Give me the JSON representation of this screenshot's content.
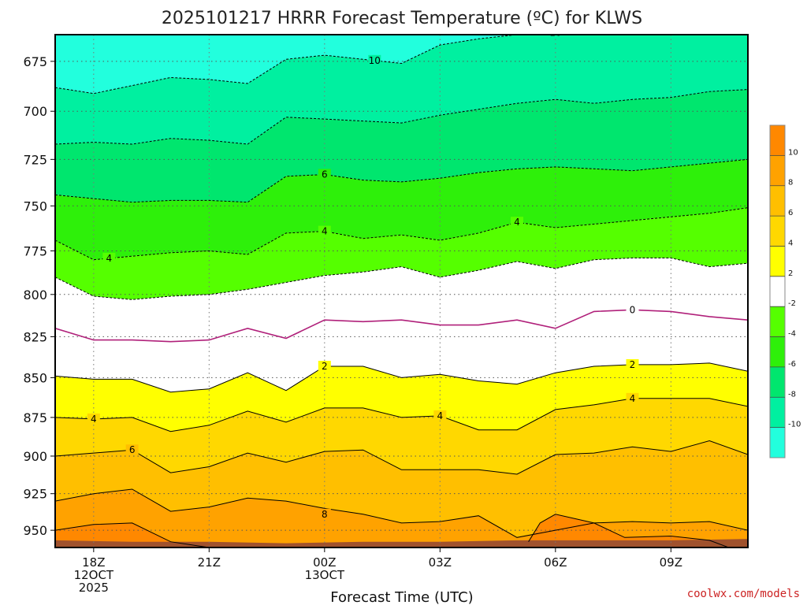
{
  "chart_data": {
    "type": "heatmap",
    "title": "2025101217 HRRR Forecast Temperature (ºC) for KLWS",
    "xlabel": "Forecast Time (UTC)",
    "ylabel": "",
    "credit": "coolwx.com/models",
    "credit_color": "#cc2222",
    "y_axis": {
      "scale": "log",
      "inverted": true,
      "range": [
        962,
        662
      ],
      "ticks": [
        675,
        700,
        725,
        750,
        775,
        800,
        825,
        850,
        875,
        900,
        925,
        950
      ]
    },
    "x_axis": {
      "range_hours": [
        -1,
        17
      ],
      "ticks": [
        {
          "hour": 0,
          "lines": [
            "18Z",
            "12OCT",
            "2025"
          ]
        },
        {
          "hour": 3,
          "lines": [
            "21Z"
          ]
        },
        {
          "hour": 6,
          "lines": [
            "00Z",
            "13OCT"
          ]
        },
        {
          "hour": 9,
          "lines": [
            "03Z"
          ]
        },
        {
          "hour": 12,
          "lines": [
            "06Z"
          ]
        },
        {
          "hour": 15,
          "lines": [
            "09Z"
          ]
        }
      ]
    },
    "grid": true,
    "colorbar": {
      "labels": [
        "10",
        "8",
        "6",
        "4",
        "2",
        "-2",
        "-4",
        "-6",
        "-8",
        "-10"
      ],
      "bands": [
        {
          "lo": 10,
          "hi": 12,
          "color": "#ff8800"
        },
        {
          "lo": 8,
          "hi": 10,
          "color": "#ffa200"
        },
        {
          "lo": 6,
          "hi": 8,
          "color": "#ffbf00"
        },
        {
          "lo": 4,
          "hi": 6,
          "color": "#ffd800"
        },
        {
          "lo": 2,
          "hi": 4,
          "color": "#ffff00"
        },
        {
          "lo": -2,
          "hi": 2,
          "color": "#ffffff"
        },
        {
          "lo": -4,
          "hi": -2,
          "color": "#55ff00"
        },
        {
          "lo": -6,
          "hi": -4,
          "color": "#2ef00a"
        },
        {
          "lo": -8,
          "hi": -6,
          "color": "#00e66e"
        },
        {
          "lo": -10,
          "hi": -8,
          "color": "#00f0a0"
        },
        {
          "lo": -12,
          "hi": -10,
          "color": "#22ffdd"
        }
      ]
    },
    "terrain_color": "#a0522d",
    "hours": [
      -1,
      0,
      1,
      2,
      3,
      4,
      5,
      6,
      7,
      8,
      9,
      10,
      11,
      12,
      13,
      14,
      15,
      16,
      17
    ],
    "contours": [
      {
        "level": -10,
        "label": "10",
        "pressure": [
          688,
          691,
          687,
          683,
          684,
          686,
          674,
          672,
          674,
          676,
          667,
          664,
          662,
          661,
          662,
          661,
          659,
          658,
          657
        ],
        "labels_at": [
          7.3,
          12
        ]
      },
      {
        "level": -8,
        "label": "",
        "pressure": [
          717,
          716,
          717,
          714,
          715,
          717,
          703,
          704,
          705,
          706,
          702,
          699,
          696,
          694,
          696,
          694,
          693,
          690,
          689
        ],
        "labels_at": []
      },
      {
        "level": -6,
        "label": "6",
        "pressure": [
          744,
          746,
          748,
          747,
          747,
          748,
          734,
          733,
          736,
          737,
          735,
          732,
          730,
          729,
          730,
          731,
          729,
          727,
          725
        ],
        "labels_at": [
          6
        ]
      },
      {
        "level": -4,
        "label": "4",
        "pressure": [
          769,
          780,
          778,
          776,
          775,
          777,
          765,
          764,
          768,
          766,
          769,
          765,
          759,
          762,
          760,
          758,
          756,
          754,
          751
        ],
        "labels_at": [
          0.4,
          6,
          11
        ]
      },
      {
        "level": -2,
        "label": "",
        "pressure": [
          790,
          801,
          803,
          801,
          800,
          797,
          793,
          789,
          787,
          784,
          790,
          786,
          781,
          785,
          780,
          779,
          779,
          784,
          782
        ],
        "labels_at": []
      },
      {
        "level": 0,
        "label": "0",
        "pressure": [
          820,
          827,
          827,
          828,
          827,
          820,
          826,
          815,
          816,
          815,
          818,
          818,
          815,
          820,
          810,
          809,
          810,
          813,
          815
        ],
        "labels_at": [
          14
        ]
      },
      {
        "level": 2,
        "label": "2",
        "pressure": [
          849,
          851,
          851,
          859,
          857,
          847,
          858,
          843,
          843,
          850,
          848,
          852,
          854,
          847,
          843,
          842,
          842,
          841,
          846
        ],
        "labels_at": [
          6,
          14
        ]
      },
      {
        "level": 4,
        "label": "4",
        "pressure": [
          875,
          876,
          875,
          884,
          880,
          871,
          878,
          869,
          869,
          875,
          874,
          883,
          883,
          870,
          867,
          863,
          863,
          863,
          868
        ],
        "labels_at": [
          0,
          9,
          14
        ]
      },
      {
        "level": 6,
        "label": "6",
        "pressure": [
          900,
          898,
          896,
          911,
          907,
          898,
          904,
          897,
          896,
          909,
          909,
          909,
          912,
          899,
          898,
          894,
          897,
          890,
          899
        ],
        "labels_at": [
          1
        ]
      }
    ],
    "contour_8_levels": [
      10,
      8
    ],
    "annotations": [
      "8"
    ]
  }
}
